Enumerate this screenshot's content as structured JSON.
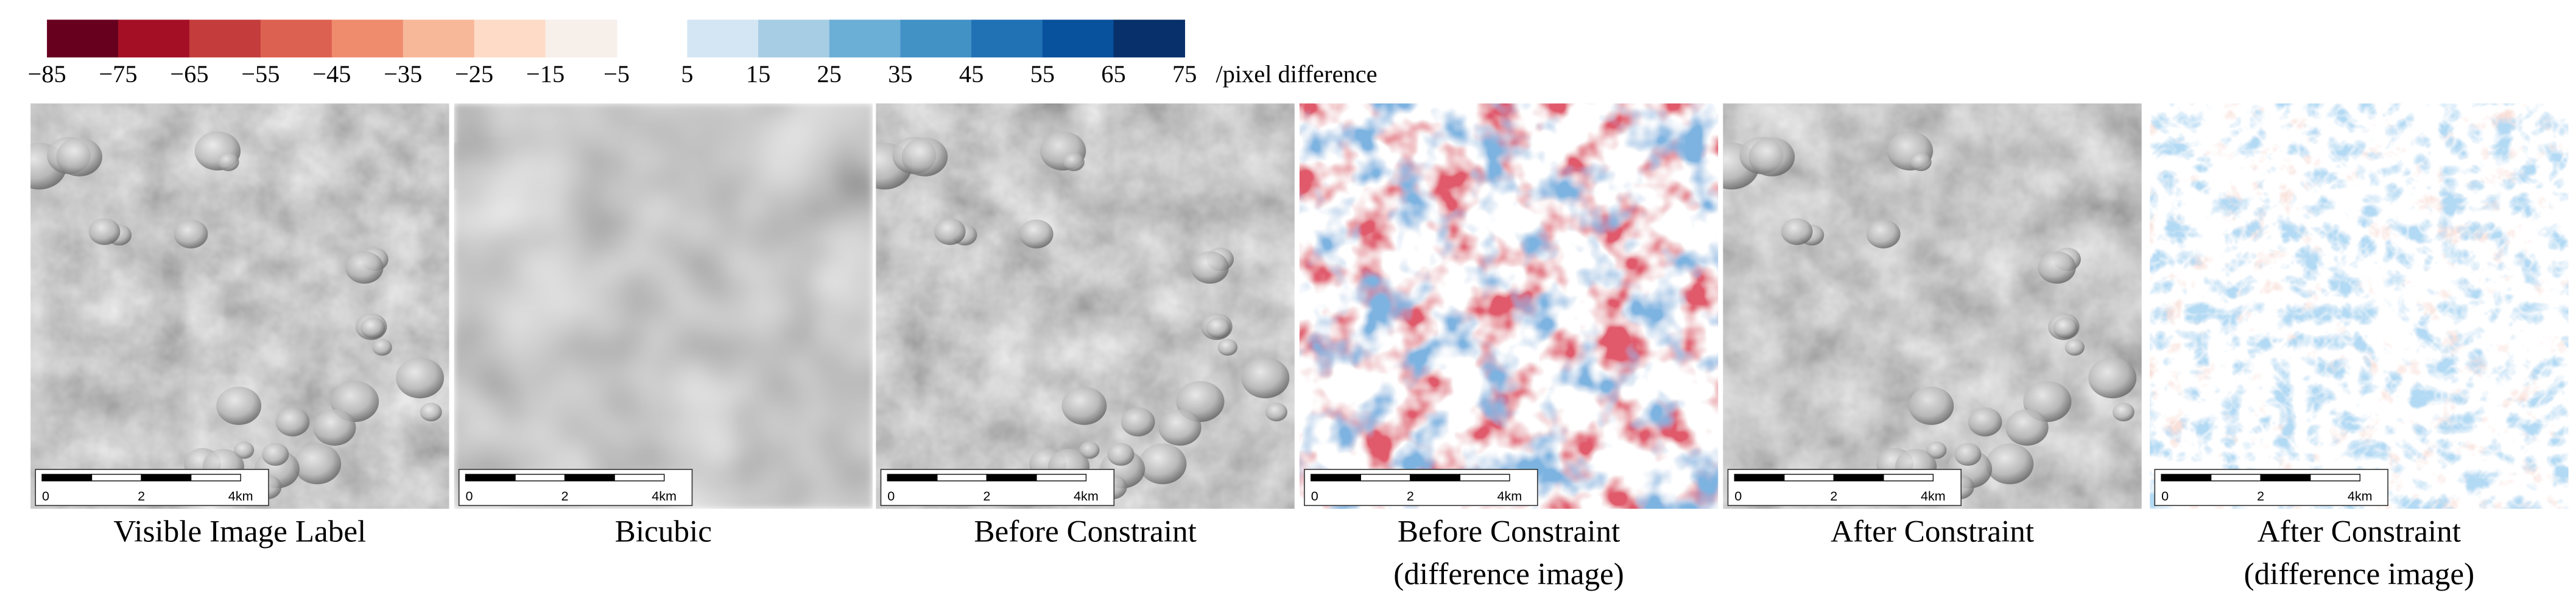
{
  "colorbar": {
    "negative": {
      "colors": [
        "#67001f",
        "#a50f26",
        "#c43c3c",
        "#dd6150",
        "#ef8c6e",
        "#f7b799",
        "#fddbc7",
        "#f7efea"
      ],
      "labels": [
        "−85",
        "−75",
        "−65",
        "−55",
        "−45",
        "−35",
        "−25",
        "−15",
        "−5"
      ]
    },
    "positive": {
      "colors": [
        "#d4e6f3",
        "#a6cde3",
        "#6baed6",
        "#4292c6",
        "#2171b5",
        "#08519c",
        "#08306b"
      ],
      "labels": [
        "5",
        "15",
        "25",
        "35",
        "45",
        "55",
        "65",
        "75"
      ]
    },
    "unit": "/pixel difference"
  },
  "scale_bar": [
    "0",
    "2",
    "4km"
  ],
  "panels": [
    {
      "caption": [
        "Visible Image Label"
      ]
    },
    {
      "caption": [
        "Bicubic"
      ]
    },
    {
      "caption": [
        "Before Constraint"
      ]
    },
    {
      "caption": [
        "Before Constraint",
        "(difference image)"
      ]
    },
    {
      "caption": [
        "After Constraint"
      ]
    },
    {
      "caption": [
        "After Constraint",
        "(difference image)"
      ]
    }
  ]
}
